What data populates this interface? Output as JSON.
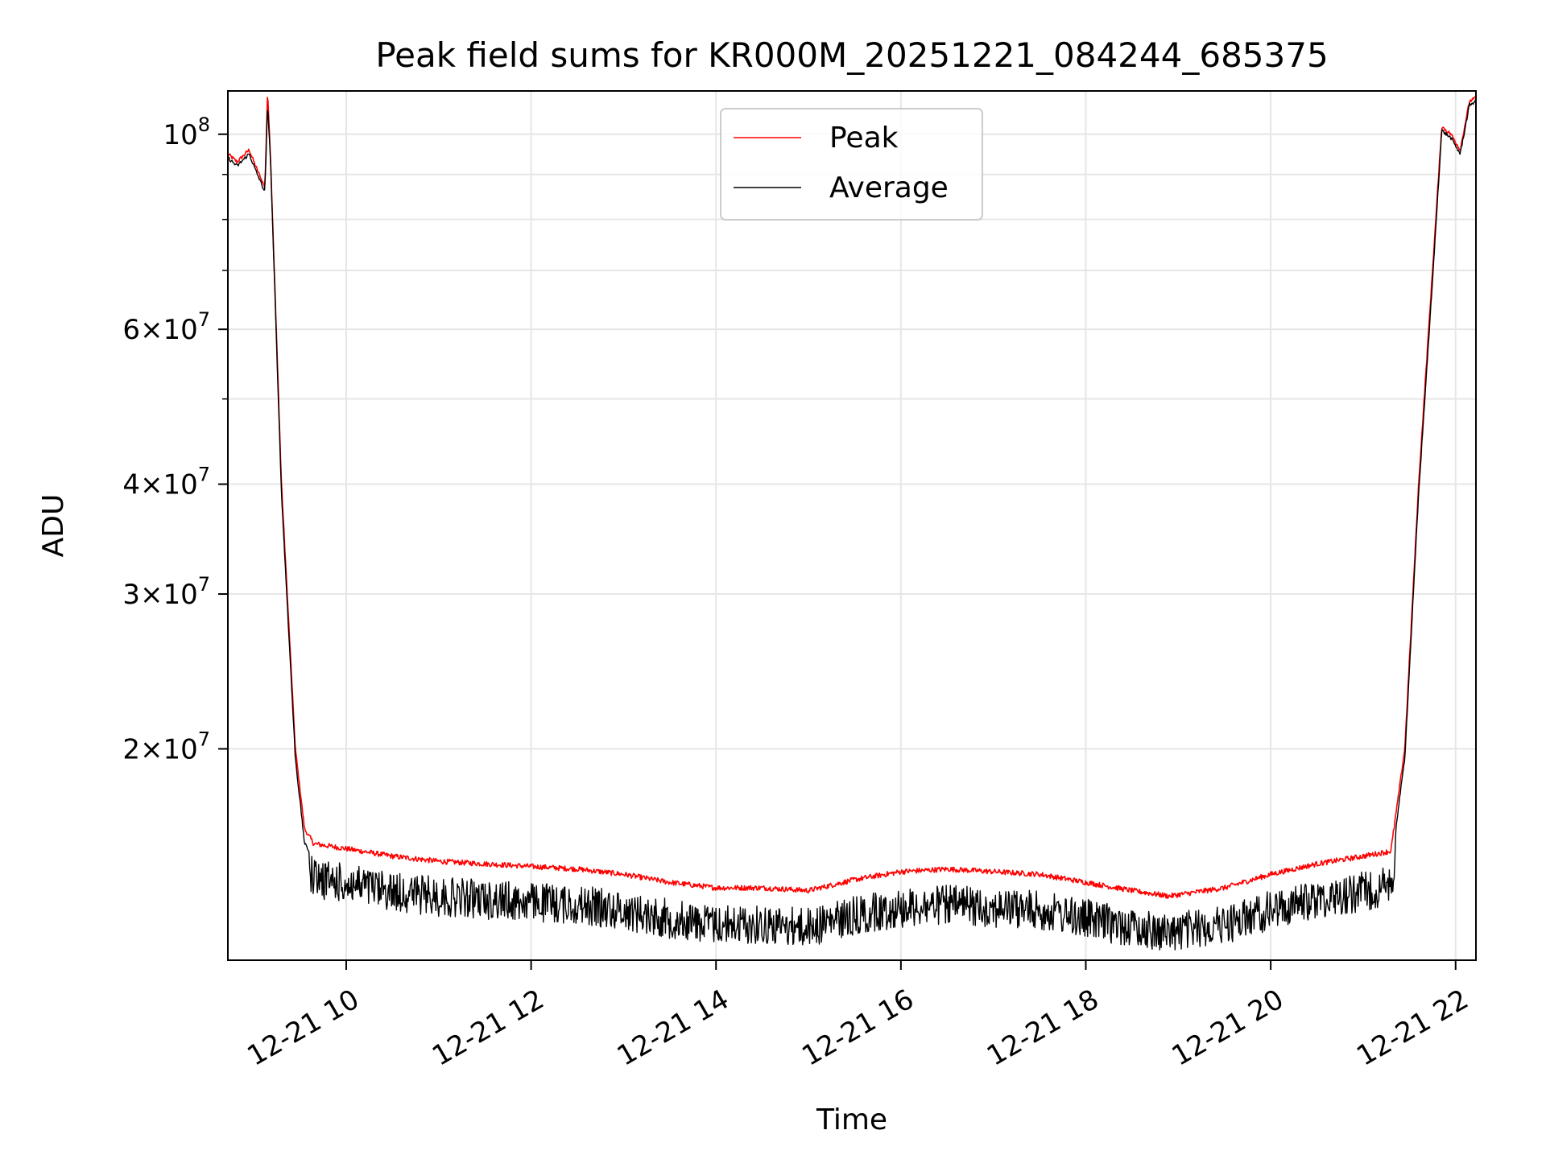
{
  "chart_data": {
    "type": "line",
    "title": "Peak field sums for KR000M_20251221_084244_685375",
    "xlabel": "Time",
    "ylabel": "ADU",
    "yscale": "log",
    "ylim": [
      11500000,
      112000000
    ],
    "xlim_hours": [
      8.72,
      22.22
    ],
    "grid": true,
    "legend_position": "top-center",
    "x_ticks": [
      {
        "hour": 10,
        "label": "12-21 10"
      },
      {
        "hour": 12,
        "label": "12-21 12"
      },
      {
        "hour": 14,
        "label": "12-21 14"
      },
      {
        "hour": 16,
        "label": "12-21 16"
      },
      {
        "hour": 18,
        "label": "12-21 18"
      },
      {
        "hour": 20,
        "label": "12-21 20"
      },
      {
        "hour": 22,
        "label": "12-21 22"
      }
    ],
    "y_major_ticks": [
      {
        "value": 100000000,
        "mantissa": "",
        "exp": "8"
      },
      {
        "value": 60000000,
        "mantissa": "6",
        "exp": "7"
      },
      {
        "value": 40000000,
        "mantissa": "4",
        "exp": "7"
      },
      {
        "value": 30000000,
        "mantissa": "3",
        "exp": "7"
      },
      {
        "value": 20000000,
        "mantissa": "2",
        "exp": "7"
      }
    ],
    "y_minor_ticks": [
      90000000,
      80000000,
      70000000,
      50000000
    ],
    "series": [
      {
        "name": "Peak",
        "color": "#ff0000",
        "x": [
          8.72,
          8.82,
          8.95,
          9.02,
          9.12,
          9.15,
          9.18,
          9.3,
          9.45,
          9.55,
          9.65,
          10.0,
          10.5,
          11.0,
          11.5,
          12.0,
          12.5,
          13.0,
          13.5,
          14.0,
          14.5,
          15.0,
          15.5,
          16.0,
          16.5,
          17.0,
          17.5,
          18.0,
          18.5,
          18.9,
          19.5,
          20.0,
          20.5,
          21.0,
          21.3,
          21.45,
          21.6,
          21.75,
          21.85,
          21.95,
          22.05,
          22.15,
          22.22
        ],
        "values": [
          95000000,
          93000000,
          96000000,
          92000000,
          87000000,
          112000000,
          95000000,
          40000000,
          20000000,
          16200000,
          15600000,
          15400000,
          15100000,
          14900000,
          14800000,
          14700000,
          14600000,
          14400000,
          14100000,
          13900000,
          13900000,
          13800000,
          14200000,
          14500000,
          14600000,
          14500000,
          14400000,
          14100000,
          13800000,
          13600000,
          13900000,
          14400000,
          14800000,
          15100000,
          15300000,
          20000000,
          40000000,
          70000000,
          102000000,
          100000000,
          96000000,
          109000000,
          110000000
        ]
      },
      {
        "name": "Average",
        "color": "#000000",
        "x": [
          8.72,
          8.82,
          8.95,
          9.02,
          9.12,
          9.15,
          9.18,
          9.3,
          9.45,
          9.55,
          9.65,
          10.0,
          10.5,
          11.0,
          11.5,
          12.0,
          12.5,
          13.0,
          13.5,
          14.0,
          14.5,
          15.0,
          15.5,
          16.0,
          16.5,
          17.0,
          17.5,
          18.0,
          18.5,
          18.9,
          19.5,
          20.0,
          20.5,
          21.0,
          21.3,
          21.45,
          21.6,
          21.75,
          21.85,
          21.95,
          22.05,
          22.15,
          22.22
        ],
        "values": [
          94000000,
          92000000,
          95000000,
          91000000,
          86000000,
          108000000,
          94000000,
          39000000,
          19500000,
          15600000,
          15000000,
          14800000,
          14500000,
          14300000,
          14200000,
          14100000,
          14000000,
          13800000,
          13500000,
          13300000,
          13300000,
          13200000,
          13600000,
          13900000,
          14000000,
          13900000,
          13800000,
          13500000,
          13200000,
          13000000,
          13300000,
          13800000,
          14200000,
          14500000,
          14700000,
          19500000,
          39000000,
          68000000,
          101000000,
          99000000,
          95000000,
          108000000,
          109000000
        ]
      }
    ]
  }
}
